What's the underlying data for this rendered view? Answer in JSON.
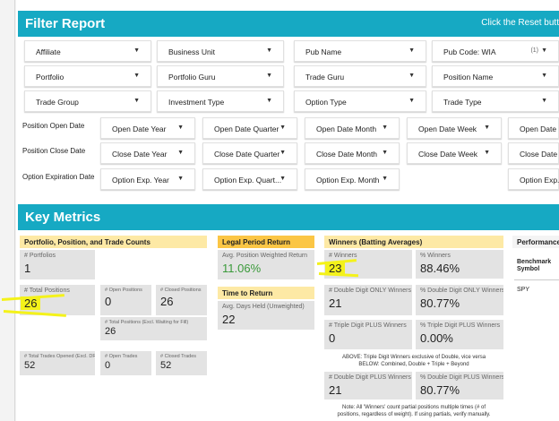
{
  "filter_report": {
    "title": "Filter Report",
    "reset_note": "Click the Reset butt",
    "dropdowns_row1": [
      "Affiliate",
      "Business Unit",
      "Pub Name",
      "Pub Code: WIA"
    ],
    "pub_code_count": "(1)",
    "dropdowns_row2": [
      "Portfolio",
      "Portfolio Guru",
      "Trade Guru",
      "Position Name"
    ],
    "dropdowns_row3": [
      "Trade Group",
      "Investment Type",
      "Option Type",
      "Trade Type"
    ],
    "date_rows": [
      {
        "label": "Position Open Date",
        "options": [
          "Open Date Year",
          "Open Date Quarter",
          "Open Date Month",
          "Open Date Week",
          "Open Date"
        ]
      },
      {
        "label": "Position Close Date",
        "options": [
          "Close Date Year",
          "Close Date Quarter",
          "Close Date Month",
          "Close Date Week",
          "Close Date"
        ]
      },
      {
        "label": "Option Expiration Date",
        "options": [
          "Option Exp. Year",
          "Option Exp. Quart...",
          "Option Exp. Month",
          "",
          "Option Exp."
        ]
      }
    ]
  },
  "key_metrics": {
    "title": "Key Metrics",
    "portfolio": {
      "header": "Portfolio, Position, and Trade Counts",
      "portfolios_label": "# Portfolios",
      "portfolios_value": "1",
      "total_positions_label": "# Total Positions",
      "total_positions_value": "26",
      "open_positions_label": "# Open Positions",
      "open_positions_value": "0",
      "closed_positions_label": "# Closed Positions",
      "closed_positions_value": "26",
      "total_excl_label": "# Total Positions (Excl. Waiting for Fill)",
      "total_excl_value": "26",
      "trades_opened_label": "# Total Trades Opened (Excl. DRIP)",
      "trades_opened_value": "52",
      "open_trades_label": "# Open Trades",
      "open_trades_value": "0",
      "closed_trades_label": "# Closed Trades",
      "closed_trades_value": "52"
    },
    "legal": {
      "header": "Legal Period Return",
      "avg_return_label": "Avg. Position Weighted Return",
      "avg_return_value": "11.06%",
      "time_header": "Time to Return",
      "days_label": "Avg. Days Held (Unweighted)",
      "days_value": "22"
    },
    "winners": {
      "header": "Winners (Batting Averages)",
      "winners_label": "# Winners",
      "winners_value": "23",
      "pct_winners_label": "% Winners",
      "pct_winners_value": "88.46%",
      "dd_only_label": "# Double Digit ONLY Winners",
      "dd_only_value": "21",
      "pct_dd_only_label": "% Double Digit ONLY Winners",
      "pct_dd_only_value": "80.77%",
      "td_plus_label": "# Triple Digit PLUS Winners",
      "td_plus_value": "0",
      "pct_td_plus_label": "% Triple Digit PLUS Winners",
      "pct_td_plus_value": "0.00%",
      "note1": "ABOVE: Triple Digit Winners exclusive of Double, vice versa",
      "note2": "BELOW: Combined, Double + Triple + Beyond",
      "dd_plus_label": "# Double Digit PLUS Winners",
      "dd_plus_value": "21",
      "pct_dd_plus_label": "% Double Digit PLUS Winners",
      "pct_dd_plus_value": "80.77%",
      "note3": "Note: All 'Winners' count partial positions multiple times (# of",
      "note4": "positions, regardless of weight). If using partials, verify manually."
    },
    "performance": {
      "header": "Performance",
      "benchmark_label": "Benchmark Symbol",
      "symbol": "SPY"
    }
  },
  "colors": {
    "accent": "#16a9c3",
    "header_light": "#fde9a5",
    "header_dark": "#fbc645",
    "highlight": "#f4f21a",
    "positive": "#3a9a3a"
  }
}
